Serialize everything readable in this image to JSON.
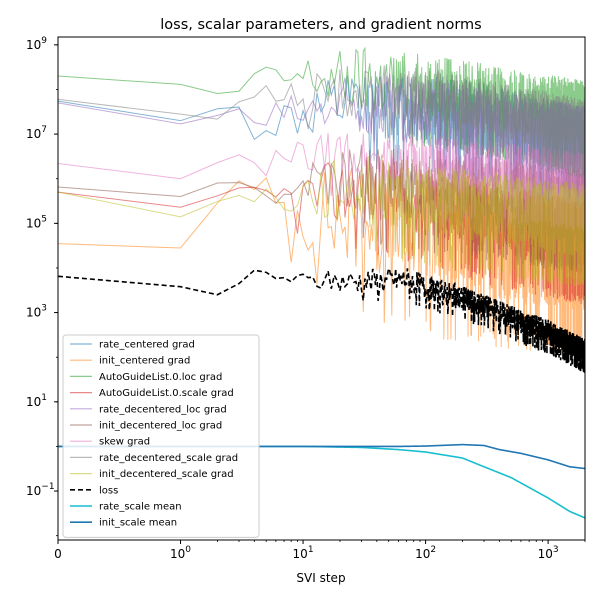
{
  "chart_data": {
    "type": "line",
    "title": "loss, scalar parameters, and gradient norms",
    "xlabel": "SVI step",
    "ylabel": "",
    "xscale": "symlog",
    "yscale": "log",
    "xlim": [
      0,
      2000
    ],
    "ylim": [
      0.008,
      1500000000
    ],
    "xticks": [
      {
        "value": 0,
        "base": "0",
        "exp": ""
      },
      {
        "value": 1,
        "base": "10",
        "exp": "0"
      },
      {
        "value": 10,
        "base": "10",
        "exp": "1"
      },
      {
        "value": 100,
        "base": "10",
        "exp": "2"
      },
      {
        "value": 1000,
        "base": "10",
        "exp": "3"
      }
    ],
    "yticks": [
      {
        "value": 0.1,
        "base": "10",
        "exp": "−1"
      },
      {
        "value": 10,
        "base": "10",
        "exp": "1"
      },
      {
        "value": 1000,
        "base": "10",
        "exp": "3"
      },
      {
        "value": 100000,
        "base": "10",
        "exp": "5"
      },
      {
        "value": 10000000,
        "base": "10",
        "exp": "7"
      },
      {
        "value": 1000000000,
        "base": "10",
        "exp": "9"
      }
    ],
    "grid": false,
    "legend_position": "lower-left",
    "series": [
      {
        "name": "rate_centered grad",
        "color": "#1f77b4",
        "style": "thin",
        "anchors": [
          [
            0,
            55000000
          ],
          [
            1,
            20000000
          ],
          [
            2.5,
            45000000
          ],
          [
            4,
            15000000
          ],
          [
            10,
            25000000
          ],
          [
            30,
            40000000
          ],
          [
            100,
            30000000
          ],
          [
            300,
            18000000
          ],
          [
            1000,
            8000000
          ],
          [
            2000,
            5000000
          ]
        ],
        "noise": 0.9,
        "seed": 11
      },
      {
        "name": "init_centered grad",
        "color": "#ff7f0e",
        "style": "thin",
        "anchors": [
          [
            0,
            35000
          ],
          [
            1,
            28000
          ],
          [
            2.5,
            600000
          ],
          [
            4,
            400000
          ],
          [
            10,
            150000
          ],
          [
            30,
            120000
          ],
          [
            100,
            50000
          ],
          [
            300,
            30000
          ],
          [
            1000,
            20000
          ],
          [
            2000,
            15000
          ]
        ],
        "noise": 1.4,
        "seed": 23
      },
      {
        "name": "AutoGuideList.0.loc grad",
        "color": "#2ca02c",
        "style": "thin",
        "anchors": [
          [
            0,
            200000000
          ],
          [
            1,
            130000000
          ],
          [
            2.5,
            70000000
          ],
          [
            4,
            150000000
          ],
          [
            10,
            180000000
          ],
          [
            30,
            160000000
          ],
          [
            100,
            100000000
          ],
          [
            300,
            60000000
          ],
          [
            1000,
            35000000
          ],
          [
            2000,
            25000000
          ]
        ],
        "noise": 0.8,
        "seed": 37
      },
      {
        "name": "AutoGuideList.0.scale grad",
        "color": "#d62728",
        "style": "thin",
        "anchors": [
          [
            0,
            500000
          ],
          [
            1,
            230000
          ],
          [
            2.5,
            500000
          ],
          [
            4,
            300000
          ],
          [
            10,
            400000
          ],
          [
            30,
            500000
          ],
          [
            100,
            300000
          ],
          [
            300,
            120000
          ],
          [
            1000,
            60000
          ],
          [
            2000,
            40000
          ]
        ],
        "noise": 0.9,
        "seed": 41
      },
      {
        "name": "rate_decentered_loc grad",
        "color": "#9467bd",
        "style": "thin",
        "anchors": [
          [
            0,
            50000000
          ],
          [
            1,
            17000000
          ],
          [
            2.5,
            30000000
          ],
          [
            4,
            18000000
          ],
          [
            10,
            30000000
          ],
          [
            30,
            40000000
          ],
          [
            100,
            30000000
          ],
          [
            300,
            18000000
          ],
          [
            1000,
            10000000
          ],
          [
            2000,
            7000000
          ]
        ],
        "noise": 0.8,
        "seed": 53
      },
      {
        "name": "init_decentered_loc grad",
        "color": "#8c564b",
        "style": "thin",
        "anchors": [
          [
            0,
            650000
          ],
          [
            1,
            400000
          ],
          [
            2.5,
            1000000
          ],
          [
            4,
            500000
          ],
          [
            10,
            700000
          ],
          [
            30,
            800000
          ],
          [
            100,
            600000
          ],
          [
            300,
            400000
          ],
          [
            1000,
            250000
          ],
          [
            2000,
            200000
          ]
        ],
        "noise": 0.9,
        "seed": 67
      },
      {
        "name": "skew grad",
        "color": "#e377c2",
        "style": "thin",
        "anchors": [
          [
            0,
            2200000
          ],
          [
            1,
            1000000
          ],
          [
            2.5,
            3000000
          ],
          [
            4,
            1500000
          ],
          [
            10,
            3000000
          ],
          [
            30,
            3000000
          ],
          [
            100,
            2000000
          ],
          [
            300,
            1500000
          ],
          [
            1000,
            1000000
          ],
          [
            2000,
            800000
          ]
        ],
        "noise": 0.7,
        "seed": 71
      },
      {
        "name": "rate_decentered_scale grad",
        "color": "#7f7f7f",
        "style": "thin",
        "anchors": [
          [
            0,
            60000000
          ],
          [
            1,
            28000000
          ],
          [
            2.5,
            20000000
          ],
          [
            4,
            80000000
          ],
          [
            10,
            70000000
          ],
          [
            30,
            80000000
          ],
          [
            100,
            60000000
          ],
          [
            300,
            35000000
          ],
          [
            1000,
            18000000
          ],
          [
            2000,
            12000000
          ]
        ],
        "noise": 0.7,
        "seed": 83
      },
      {
        "name": "init_decentered_scale grad",
        "color": "#bcbd22",
        "style": "thin",
        "anchors": [
          [
            0,
            500000
          ],
          [
            1,
            140000
          ],
          [
            2.5,
            400000
          ],
          [
            4,
            300000
          ],
          [
            10,
            400000
          ],
          [
            30,
            500000
          ],
          [
            100,
            300000
          ],
          [
            300,
            200000
          ],
          [
            1000,
            120000
          ],
          [
            2000,
            100000
          ]
        ],
        "noise": 0.9,
        "seed": 97
      },
      {
        "name": "loss",
        "color": "#000000",
        "style": "dashed",
        "anchors": [
          [
            0,
            6500
          ],
          [
            1,
            3800
          ],
          [
            2.5,
            2200
          ],
          [
            4,
            8000
          ],
          [
            7,
            6000
          ],
          [
            10,
            5000
          ],
          [
            20,
            5000
          ],
          [
            40,
            5000
          ],
          [
            70,
            5500
          ],
          [
            100,
            3500
          ],
          [
            200,
            2000
          ],
          [
            400,
            1000
          ],
          [
            700,
            500
          ],
          [
            1000,
            350
          ],
          [
            2000,
            130
          ]
        ],
        "noise": 0.3,
        "seed": 101
      },
      {
        "name": "rate_scale mean",
        "color": "#17becf",
        "style": "solid",
        "anchors": [
          [
            0,
            1
          ],
          [
            10,
            1
          ],
          [
            30,
            0.95
          ],
          [
            60,
            0.85
          ],
          [
            100,
            0.75
          ],
          [
            200,
            0.55
          ],
          [
            300,
            0.35
          ],
          [
            500,
            0.2
          ],
          [
            1000,
            0.07
          ],
          [
            1500,
            0.035
          ],
          [
            2000,
            0.025
          ]
        ],
        "noise": 0,
        "seed": 0
      },
      {
        "name": "init_scale mean",
        "color": "#1f77b4",
        "style": "solid",
        "anchors": [
          [
            0,
            1
          ],
          [
            20,
            1
          ],
          [
            60,
            1
          ],
          [
            100,
            1.02
          ],
          [
            200,
            1.1
          ],
          [
            300,
            1.05
          ],
          [
            400,
            0.85
          ],
          [
            600,
            0.7
          ],
          [
            1000,
            0.5
          ],
          [
            1500,
            0.35
          ],
          [
            2000,
            0.32
          ]
        ],
        "noise": 0,
        "seed": 0
      }
    ]
  }
}
